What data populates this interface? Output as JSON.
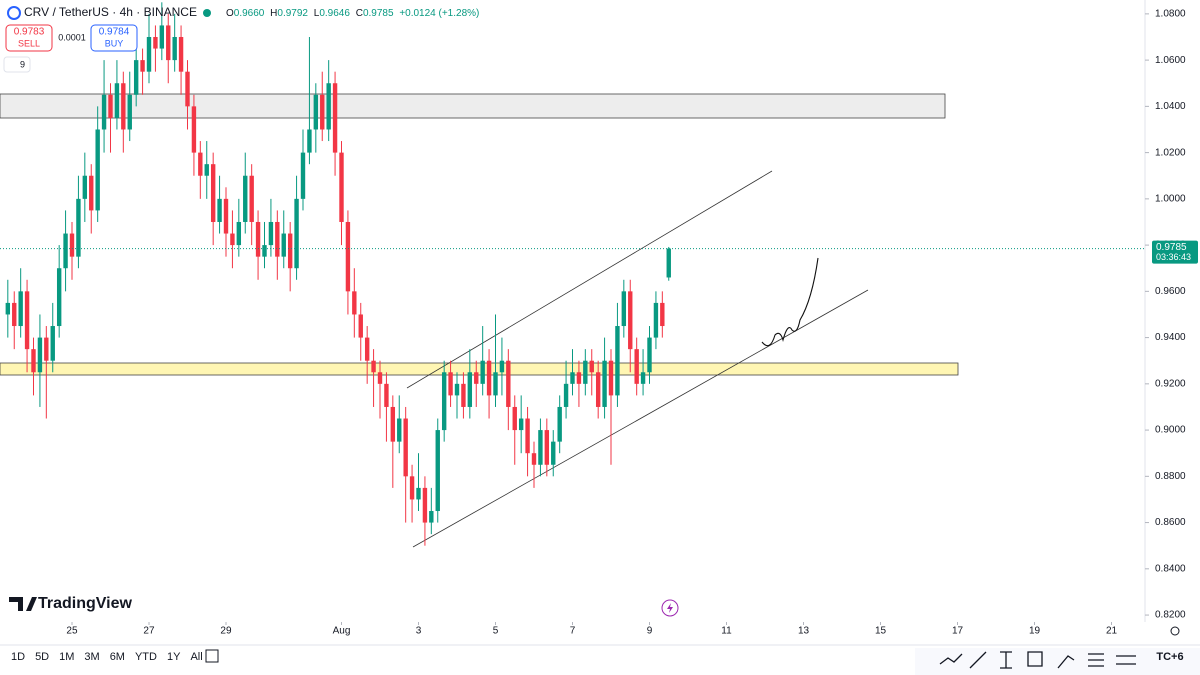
{
  "chart_data": {
    "type": "candlestick",
    "title": "CRV / TetherUS · 4h · BINANCE",
    "info": {
      "o": "O",
      "open": "0.9660",
      "h": "H",
      "high": "0.9792",
      "l": "L",
      "low": "0.9646",
      "c": "C",
      "close": "0.9785",
      "change": "+0.0124 (+1.28%)"
    },
    "sell": {
      "price": "0.9783",
      "label": "SELL"
    },
    "spread": "0.0001",
    "buy": {
      "price": "0.9784",
      "label": "BUY"
    },
    "indicators": "9",
    "brand": "TradingView",
    "up_color": "#089981",
    "down_color": "#f23645",
    "x": [
      23.333,
      23.5,
      23.667,
      23.833,
      24,
      24.167,
      24.333,
      24.5,
      24.667,
      24.833,
      25,
      25.167,
      25.333,
      25.5,
      25.667,
      25.833,
      26,
      26.167,
      26.333,
      26.5,
      26.667,
      26.833,
      27,
      27.167,
      27.333,
      27.5,
      27.667,
      27.833,
      28,
      28.167,
      28.333,
      28.5,
      28.667,
      28.833,
      29,
      29.167,
      29.333,
      29.5,
      29.667,
      29.833,
      30,
      30.167,
      30.333,
      30.5,
      30.667,
      30.833,
      31,
      31.167,
      31.333,
      31.5,
      31.667,
      31.833,
      32,
      32.167,
      32.333,
      32.5,
      32.667,
      32.833,
      33,
      33.167,
      33.333,
      33.5,
      33.667,
      33.833,
      34,
      34.167,
      34.333,
      34.5,
      34.667,
      34.833,
      35,
      35.167,
      35.333,
      35.5,
      35.667,
      35.833,
      36,
      36.167,
      36.333,
      36.5,
      36.667,
      36.833,
      37,
      37.167,
      37.333,
      37.5,
      37.667,
      37.833,
      38,
      38.167,
      38.333,
      38.5,
      38.667,
      38.833,
      39,
      39.167,
      39.333,
      39.5,
      39.667,
      39.833,
      40,
      40.167,
      40.333,
      40.5
    ],
    "ohlc": [
      [
        0.95,
        0.965,
        0.94,
        0.955
      ],
      [
        0.955,
        0.96,
        0.935,
        0.945
      ],
      [
        0.945,
        0.97,
        0.94,
        0.96
      ],
      [
        0.96,
        0.965,
        0.925,
        0.935
      ],
      [
        0.935,
        0.94,
        0.915,
        0.925
      ],
      [
        0.925,
        0.95,
        0.91,
        0.94
      ],
      [
        0.94,
        0.945,
        0.905,
        0.93
      ],
      [
        0.93,
        0.955,
        0.925,
        0.945
      ],
      [
        0.945,
        0.98,
        0.94,
        0.97
      ],
      [
        0.97,
        0.995,
        0.96,
        0.985
      ],
      [
        0.985,
        0.99,
        0.965,
        0.975
      ],
      [
        0.975,
        1.01,
        0.97,
        1.0
      ],
      [
        1.0,
        1.02,
        0.99,
        1.01
      ],
      [
        1.01,
        1.015,
        0.985,
        0.995
      ],
      [
        0.995,
        1.04,
        0.99,
        1.03
      ],
      [
        1.03,
        1.06,
        1.02,
        1.045
      ],
      [
        1.045,
        1.05,
        1.02,
        1.035
      ],
      [
        1.035,
        1.06,
        1.03,
        1.05
      ],
      [
        1.05,
        1.055,
        1.02,
        1.03
      ],
      [
        1.03,
        1.055,
        1.025,
        1.045
      ],
      [
        1.045,
        1.07,
        1.04,
        1.06
      ],
      [
        1.06,
        1.065,
        1.045,
        1.055
      ],
      [
        1.055,
        1.08,
        1.05,
        1.07
      ],
      [
        1.07,
        1.075,
        1.055,
        1.065
      ],
      [
        1.065,
        1.085,
        1.06,
        1.075
      ],
      [
        1.075,
        1.08,
        1.05,
        1.06
      ],
      [
        1.06,
        1.08,
        1.055,
        1.07
      ],
      [
        1.07,
        1.075,
        1.045,
        1.055
      ],
      [
        1.055,
        1.06,
        1.03,
        1.04
      ],
      [
        1.04,
        1.045,
        1.01,
        1.02
      ],
      [
        1.02,
        1.025,
        1.0,
        1.01
      ],
      [
        1.01,
        1.025,
        1.0,
        1.015
      ],
      [
        1.015,
        1.02,
        0.98,
        0.99
      ],
      [
        0.99,
        1.01,
        0.985,
        1.0
      ],
      [
        1.0,
        1.005,
        0.975,
        0.985
      ],
      [
        0.985,
        0.995,
        0.97,
        0.98
      ],
      [
        0.98,
        1.0,
        0.975,
        0.99
      ],
      [
        0.99,
        1.02,
        0.985,
        1.01
      ],
      [
        1.01,
        1.015,
        0.98,
        0.99
      ],
      [
        0.99,
        0.995,
        0.965,
        0.975
      ],
      [
        0.975,
        0.99,
        0.97,
        0.98
      ],
      [
        0.98,
        1.0,
        0.975,
        0.99
      ],
      [
        0.99,
        0.995,
        0.965,
        0.975
      ],
      [
        0.975,
        0.995,
        0.97,
        0.985
      ],
      [
        0.985,
        0.99,
        0.96,
        0.97
      ],
      [
        0.97,
        1.01,
        0.965,
        1.0
      ],
      [
        1.0,
        1.03,
        0.995,
        1.02
      ],
      [
        1.02,
        1.07,
        1.015,
        1.03
      ],
      [
        1.03,
        1.05,
        1.02,
        1.045
      ],
      [
        1.045,
        1.055,
        1.025,
        1.03
      ],
      [
        1.03,
        1.06,
        1.025,
        1.05
      ],
      [
        1.05,
        1.055,
        1.01,
        1.02
      ],
      [
        1.02,
        1.025,
        0.98,
        0.99
      ],
      [
        0.99,
        0.995,
        0.95,
        0.96
      ],
      [
        0.96,
        0.97,
        0.94,
        0.95
      ],
      [
        0.95,
        0.955,
        0.93,
        0.94
      ],
      [
        0.94,
        0.945,
        0.92,
        0.93
      ],
      [
        0.93,
        0.935,
        0.91,
        0.925
      ],
      [
        0.925,
        0.93,
        0.905,
        0.92
      ],
      [
        0.92,
        0.925,
        0.895,
        0.91
      ],
      [
        0.91,
        0.915,
        0.875,
        0.895
      ],
      [
        0.895,
        0.915,
        0.89,
        0.905
      ],
      [
        0.905,
        0.91,
        0.86,
        0.88
      ],
      [
        0.88,
        0.885,
        0.86,
        0.87
      ],
      [
        0.87,
        0.89,
        0.865,
        0.875
      ],
      [
        0.875,
        0.88,
        0.85,
        0.86
      ],
      [
        0.86,
        0.875,
        0.855,
        0.865
      ],
      [
        0.865,
        0.905,
        0.86,
        0.9
      ],
      [
        0.9,
        0.93,
        0.895,
        0.925
      ],
      [
        0.925,
        0.93,
        0.91,
        0.915
      ],
      [
        0.915,
        0.925,
        0.905,
        0.92
      ],
      [
        0.92,
        0.925,
        0.905,
        0.91
      ],
      [
        0.91,
        0.935,
        0.905,
        0.925
      ],
      [
        0.925,
        0.93,
        0.91,
        0.92
      ],
      [
        0.92,
        0.945,
        0.915,
        0.93
      ],
      [
        0.93,
        0.935,
        0.905,
        0.915
      ],
      [
        0.915,
        0.95,
        0.91,
        0.925
      ],
      [
        0.925,
        0.94,
        0.915,
        0.93
      ],
      [
        0.93,
        0.935,
        0.9,
        0.91
      ],
      [
        0.91,
        0.915,
        0.885,
        0.9
      ],
      [
        0.9,
        0.915,
        0.89,
        0.905
      ],
      [
        0.905,
        0.91,
        0.88,
        0.89
      ],
      [
        0.89,
        0.895,
        0.875,
        0.885
      ],
      [
        0.885,
        0.905,
        0.88,
        0.9
      ],
      [
        0.9,
        0.905,
        0.88,
        0.885
      ],
      [
        0.885,
        0.9,
        0.88,
        0.895
      ],
      [
        0.895,
        0.915,
        0.89,
        0.91
      ],
      [
        0.91,
        0.93,
        0.905,
        0.92
      ],
      [
        0.92,
        0.935,
        0.915,
        0.925
      ],
      [
        0.925,
        0.93,
        0.91,
        0.92
      ],
      [
        0.92,
        0.935,
        0.915,
        0.93
      ],
      [
        0.93,
        0.935,
        0.915,
        0.925
      ],
      [
        0.925,
        0.93,
        0.905,
        0.91
      ],
      [
        0.91,
        0.94,
        0.905,
        0.93
      ],
      [
        0.93,
        0.935,
        0.885,
        0.915
      ],
      [
        0.915,
        0.955,
        0.91,
        0.945
      ],
      [
        0.945,
        0.965,
        0.94,
        0.96
      ],
      [
        0.96,
        0.965,
        0.925,
        0.935
      ],
      [
        0.935,
        0.94,
        0.915,
        0.92
      ],
      [
        0.92,
        0.935,
        0.915,
        0.925
      ],
      [
        0.925,
        0.945,
        0.92,
        0.94
      ],
      [
        0.94,
        0.96,
        0.935,
        0.955
      ],
      [
        0.955,
        0.96,
        0.94,
        0.945
      ],
      [
        0.966,
        0.9792,
        0.9646,
        0.9785
      ]
    ],
    "xlim": [
      23.13,
      52.87
    ],
    "xticks": [
      25,
      27,
      29,
      {
        "value": 32,
        "label": "Aug"
      },
      {
        "value": 34,
        "label": "3"
      },
      {
        "value": 36,
        "label": "5"
      },
      {
        "value": 38,
        "label": "7"
      },
      {
        "value": 40,
        "label": "9"
      },
      {
        "value": 42,
        "label": "11"
      },
      {
        "value": 44,
        "label": "13"
      },
      {
        "value": 46,
        "label": "15"
      },
      {
        "value": 48,
        "label": "17"
      },
      {
        "value": 50,
        "label": "19"
      },
      {
        "value": 52,
        "label": "21"
      }
    ],
    "ylim": [
      0.817,
      1.086
    ],
    "yticks": [
      {
        "value": 0.82,
        "label": "0.8200"
      },
      {
        "value": 0.84,
        "label": "0.8400"
      },
      {
        "value": 0.86,
        "label": "0.8600"
      },
      {
        "value": 0.88,
        "label": "0.8800"
      },
      {
        "value": 0.9,
        "label": "0.9000"
      },
      {
        "value": 0.92,
        "label": "0.9200"
      },
      {
        "value": 0.94,
        "label": "0.9400"
      },
      {
        "value": 0.96,
        "label": "0.9600"
      },
      {
        "value": 0.98,
        "label": "0.9800"
      },
      {
        "value": 1.0,
        "label": "1.0000"
      },
      {
        "value": 1.02,
        "label": "1.0200"
      },
      {
        "value": 1.04,
        "label": "1.0400"
      },
      {
        "value": 1.06,
        "label": "1.0600"
      },
      {
        "value": 1.08,
        "label": "1.0800"
      }
    ],
    "last_price": {
      "value": 0.9785,
      "label": "0.9785",
      "countdown": "03:36:43"
    },
    "ranges": [
      "1D",
      "5D",
      "1M",
      "3M",
      "6M",
      "YTD",
      "1Y",
      "All"
    ],
    "timezone": "TC+6"
  }
}
